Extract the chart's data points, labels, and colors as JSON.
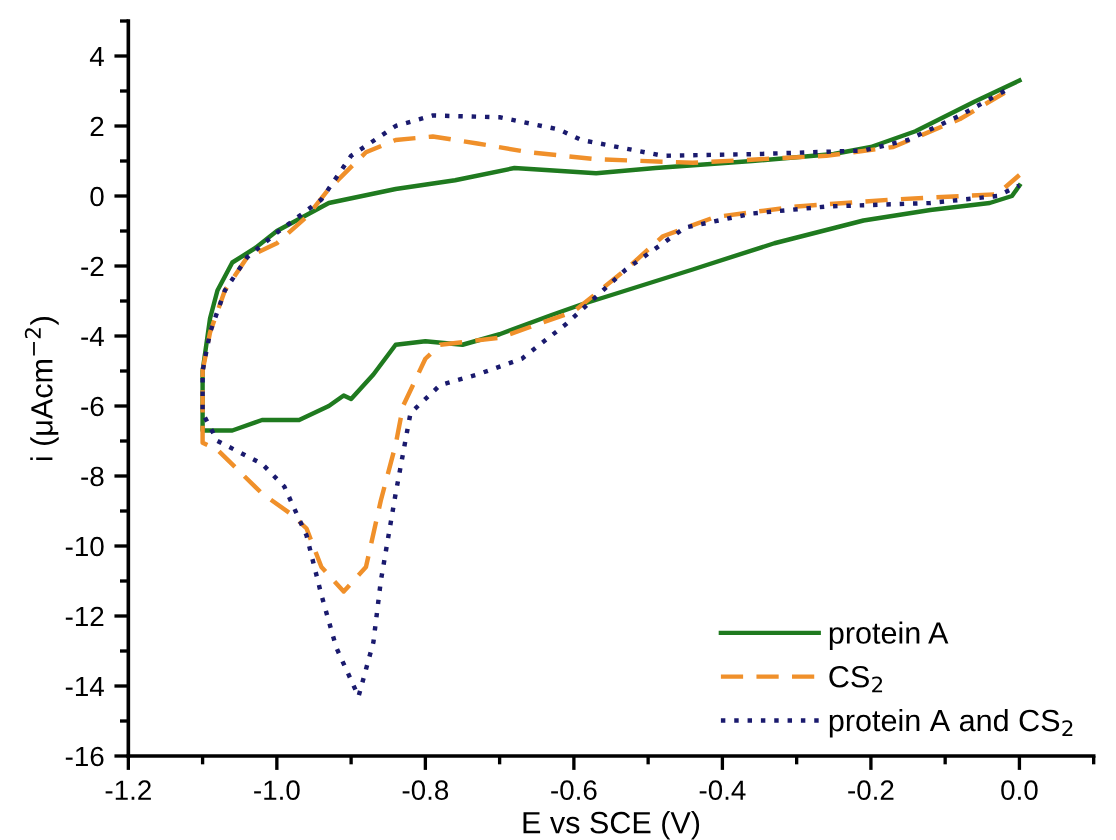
{
  "chart_data": {
    "type": "line",
    "xlabel": "E vs SCE (V)",
    "ylabel": "i (μAcm$^{−2}$)",
    "xlim": [
      -1.2,
      0.1
    ],
    "ylim": [
      -16,
      5
    ],
    "xticks": [
      -1.2,
      {
        "value": -1.0,
        "label": "-1.0"
      },
      -0.8,
      -0.6,
      -0.4,
      -0.2,
      {
        "value": 0.0,
        "label": "0.0"
      }
    ],
    "yticks": [
      -16,
      -14,
      -12,
      -10,
      -8,
      -6,
      -4,
      -2,
      0,
      2,
      4
    ],
    "grid": false,
    "legend": "bottom right",
    "marker": "none",
    "series": [
      {
        "name": "protein A",
        "color": "#1f7a1f",
        "line_style": "solid",
        "x": [
          0.0,
          -0.06,
          -0.14,
          -0.2,
          -0.25,
          -0.36,
          -0.49,
          -0.57,
          -0.68,
          -0.76,
          -0.84,
          -0.93,
          -1.0,
          -1.03,
          -1.06,
          -1.08,
          -1.09,
          -1.1,
          -1.1,
          -1.1,
          -1.06,
          -1.02,
          -0.97,
          -0.93,
          -0.91,
          -0.9,
          -0.87,
          -0.84,
          -0.8,
          -0.75,
          -0.7,
          -0.63,
          -0.59,
          -0.44,
          -0.33,
          -0.21,
          -0.12,
          -0.04,
          -0.01,
          0.0
        ],
        "values": [
          3.3,
          2.7,
          1.85,
          1.4,
          1.2,
          1.0,
          0.8,
          0.65,
          0.8,
          0.45,
          0.2,
          -0.2,
          -1.0,
          -1.5,
          -1.9,
          -2.7,
          -3.5,
          -5.0,
          -6.0,
          -6.7,
          -6.7,
          -6.4,
          -6.4,
          -6.0,
          -5.7,
          -5.8,
          -5.1,
          -4.25,
          -4.15,
          -4.25,
          -3.95,
          -3.4,
          -3.1,
          -2.1,
          -1.35,
          -0.7,
          -0.4,
          -0.2,
          0.0,
          0.3
        ]
      },
      {
        "name": "CS$_{2}$",
        "color": "#f0902a",
        "line_style": "dashed",
        "x": [
          -0.02,
          -0.08,
          -0.17,
          -0.26,
          -0.44,
          -0.57,
          -0.66,
          -0.73,
          -0.79,
          -0.84,
          -0.88,
          -0.93,
          -0.96,
          -1.0,
          -1.04,
          -1.07,
          -1.09,
          -1.1,
          -1.1,
          -1.1,
          -1.08,
          -1.02,
          -0.98,
          -0.96,
          -0.94,
          -0.91,
          -0.88,
          -0.86,
          -0.84,
          -0.83,
          -0.8,
          -0.78,
          -0.7,
          -0.66,
          -0.6,
          -0.53,
          -0.48,
          -0.41,
          -0.3,
          -0.17,
          -0.03,
          0.0
        ],
        "values": [
          2.95,
          2.2,
          1.4,
          1.15,
          0.95,
          1.05,
          1.25,
          1.5,
          1.7,
          1.6,
          1.25,
          0.2,
          -0.6,
          -1.35,
          -1.75,
          -2.7,
          -3.9,
          -5.0,
          -6.2,
          -7.05,
          -7.25,
          -8.5,
          -9.1,
          -9.5,
          -10.6,
          -11.3,
          -10.6,
          -8.7,
          -7.1,
          -6.0,
          -4.65,
          -4.25,
          -4.05,
          -3.75,
          -3.3,
          -2.1,
          -1.15,
          -0.6,
          -0.3,
          -0.1,
          0.05,
          0.6
        ]
      },
      {
        "name": "protein A and CS$_{2}$",
        "color": "#1a1a6e",
        "line_style": "dotted",
        "x": [
          -0.02,
          -0.08,
          -0.15,
          -0.21,
          -0.35,
          -0.48,
          -0.59,
          -0.62,
          -0.7,
          -0.79,
          -0.84,
          -0.9,
          -0.94,
          -1.0,
          -1.04,
          -1.07,
          -1.09,
          -1.1,
          -1.1,
          -1.08,
          -1.02,
          -0.99,
          -0.96,
          -0.94,
          -0.92,
          -0.89,
          -0.87,
          -0.86,
          -0.84,
          -0.82,
          -0.78,
          -0.73,
          -0.67,
          -0.61,
          -0.53,
          -0.45,
          -0.36,
          -0.26,
          -0.12,
          -0.03,
          0.0
        ],
        "values": [
          3.0,
          2.3,
          1.6,
          1.3,
          1.2,
          1.15,
          1.6,
          1.9,
          2.25,
          2.3,
          2.0,
          1.15,
          -0.1,
          -1.05,
          -1.75,
          -2.7,
          -3.9,
          -5.0,
          -6.2,
          -7.0,
          -7.65,
          -8.3,
          -9.7,
          -11.4,
          -12.9,
          -14.3,
          -12.75,
          -11.0,
          -8.5,
          -6.2,
          -5.4,
          -5.1,
          -4.65,
          -3.65,
          -2.1,
          -0.9,
          -0.5,
          -0.3,
          -0.2,
          0.0,
          0.3
        ]
      }
    ]
  }
}
